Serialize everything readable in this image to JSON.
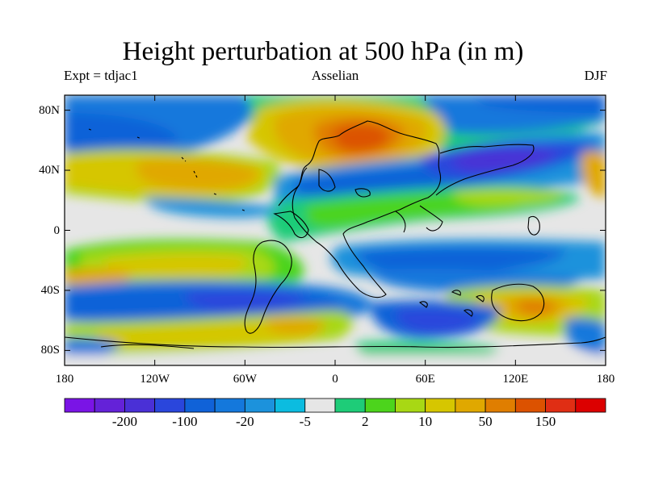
{
  "figure": {
    "title": "Height perturbation at 500 hPa (in m)",
    "left_label": "Expt = tdjac1",
    "center_label": "Asselian",
    "right_label": "DJF"
  },
  "map": {
    "type": "filled-contour",
    "variable": "500 hPa height perturbation (m)",
    "lon_range": [
      -180,
      180
    ],
    "lat_range": [
      -90,
      90
    ],
    "lat_ticks": [
      {
        "value": 80,
        "label": "80N"
      },
      {
        "value": 40,
        "label": "40N"
      },
      {
        "value": 0,
        "label": "0"
      },
      {
        "value": -40,
        "label": "40S"
      },
      {
        "value": -80,
        "label": "80S"
      }
    ],
    "lon_ticks": [
      {
        "value": -180,
        "label": "180"
      },
      {
        "value": -120,
        "label": "120W"
      },
      {
        "value": -60,
        "label": "60W"
      },
      {
        "value": 0,
        "label": "0"
      },
      {
        "value": 60,
        "label": "60E"
      },
      {
        "value": 120,
        "label": "120E"
      },
      {
        "value": 180,
        "label": "180"
      }
    ]
  },
  "colorbar": {
    "colors": [
      "#7a14e6",
      "#6422d8",
      "#4a30d6",
      "#2a46dc",
      "#1062d8",
      "#1478dc",
      "#1c92dc",
      "#0cbce0",
      "#e6e6e6",
      "#1ecc78",
      "#4cd41c",
      "#a8d814",
      "#d6c600",
      "#e0a800",
      "#e07e00",
      "#dc5200",
      "#e02e14",
      "#dc0000"
    ],
    "labels": [
      {
        "after_index": 1,
        "text": "-200"
      },
      {
        "after_index": 3,
        "text": "-100"
      },
      {
        "after_index": 5,
        "text": "-20"
      },
      {
        "after_index": 7,
        "text": "-5"
      },
      {
        "after_index": 9,
        "text": "2"
      },
      {
        "after_index": 11,
        "text": "10"
      },
      {
        "after_index": 13,
        "text": "50"
      },
      {
        "after_index": 15,
        "text": "150"
      }
    ]
  }
}
